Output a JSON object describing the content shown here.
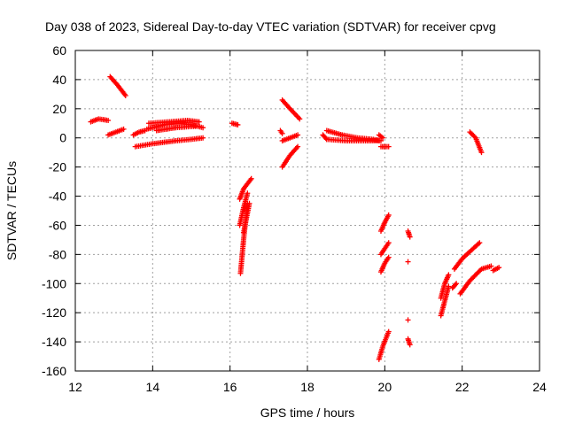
{
  "chart_data": {
    "type": "scatter",
    "title": "Day 038 of 2023, Sidereal Day-to-day VTEC variation (SDTVAR) for receiver cpvg",
    "xlabel": "GPS time / hours",
    "ylabel": "SDTVAR / TECUs",
    "xlim": [
      12,
      24
    ],
    "ylim": [
      -160,
      60
    ],
    "xticks": [
      12,
      14,
      16,
      18,
      20,
      22,
      24
    ],
    "yticks": [
      60,
      40,
      20,
      0,
      -20,
      -40,
      -60,
      -80,
      -100,
      -120,
      -140,
      -160
    ],
    "grid": true,
    "marker": "plus",
    "color": "#ff0000",
    "arcs": [
      {
        "x": [
          12.4,
          12.6,
          12.85
        ],
        "y": [
          11,
          13,
          12
        ]
      },
      {
        "x": [
          12.9,
          13.1,
          13.3
        ],
        "y": [
          42,
          36,
          29
        ]
      },
      {
        "x": [
          12.85,
          13.05,
          13.25
        ],
        "y": [
          2,
          4,
          6
        ]
      },
      {
        "x": [
          13.5,
          13.65,
          13.8
        ],
        "y": [
          2,
          4,
          5
        ]
      },
      {
        "x": [
          13.55,
          14.0,
          14.6,
          15.0,
          15.3
        ],
        "y": [
          -6,
          -4,
          -2,
          -1,
          0
        ]
      },
      {
        "x": [
          13.85,
          14.3,
          14.7,
          15.0,
          15.3
        ],
        "y": [
          6,
          9,
          10,
          9,
          7
        ]
      },
      {
        "x": [
          13.9,
          14.4,
          14.9,
          15.2
        ],
        "y": [
          10,
          11,
          12,
          11
        ]
      },
      {
        "x": [
          14.1,
          14.6,
          15.1
        ],
        "y": [
          5,
          7,
          8
        ]
      },
      {
        "x": [
          16.05,
          16.2
        ],
        "y": [
          10,
          9
        ]
      },
      {
        "x": [
          16.25,
          16.35,
          16.55
        ],
        "y": [
          -42,
          -35,
          -28
        ]
      },
      {
        "x": [
          16.25,
          16.35,
          16.45
        ],
        "y": [
          -60,
          -48,
          -38
        ]
      },
      {
        "x": [
          16.27,
          16.35,
          16.45
        ],
        "y": [
          -93,
          -70,
          -45
        ]
      },
      {
        "x": [
          16.35,
          16.5
        ],
        "y": [
          -65,
          -45
        ]
      },
      {
        "x": [
          17.3,
          17.35
        ],
        "y": [
          5,
          3
        ]
      },
      {
        "x": [
          17.35,
          17.55,
          17.8
        ],
        "y": [
          26,
          20,
          13
        ]
      },
      {
        "x": [
          17.35,
          17.55,
          17.75
        ],
        "y": [
          -2,
          0,
          2
        ]
      },
      {
        "x": [
          17.35,
          17.55,
          17.75
        ],
        "y": [
          -20,
          -12,
          -6
        ]
      },
      {
        "x": [
          18.4,
          18.5
        ],
        "y": [
          2,
          -1
        ]
      },
      {
        "x": [
          18.5,
          18.9,
          19.3,
          19.7,
          19.9
        ],
        "y": [
          5,
          2,
          0,
          -1,
          -2
        ]
      },
      {
        "x": [
          18.5,
          19.0,
          19.5,
          19.85
        ],
        "y": [
          -1,
          -2,
          -2,
          -2
        ]
      },
      {
        "x": [
          19.85,
          19.95
        ],
        "y": [
          2,
          0
        ]
      },
      {
        "x": [
          19.9,
          20.1
        ],
        "y": [
          -6,
          -6
        ]
      },
      {
        "x": [
          19.9,
          20.0,
          20.1
        ],
        "y": [
          -64,
          -58,
          -53
        ]
      },
      {
        "x": [
          19.9,
          20.0,
          20.1
        ],
        "y": [
          -80,
          -76,
          -72
        ]
      },
      {
        "x": [
          19.9,
          20.0,
          20.1
        ],
        "y": [
          -92,
          -86,
          -82
        ]
      },
      {
        "x": [
          19.85,
          19.95,
          20.1
        ],
        "y": [
          -152,
          -143,
          -133
        ]
      },
      {
        "x": [
          20.6,
          20.65
        ],
        "y": [
          -64,
          -68
        ]
      },
      {
        "x": [
          20.6
        ],
        "y": [
          -85
        ]
      },
      {
        "x": [
          20.6
        ],
        "y": [
          -125
        ]
      },
      {
        "x": [
          20.6,
          20.65
        ],
        "y": [
          -138,
          -142
        ]
      },
      {
        "x": [
          21.45,
          21.55,
          21.65
        ],
        "y": [
          -122,
          -112,
          -102
        ]
      },
      {
        "x": [
          21.45,
          21.55,
          21.65
        ],
        "y": [
          -110,
          -100,
          -94
        ]
      },
      {
        "x": [
          21.75,
          21.85
        ],
        "y": [
          -103,
          -100
        ]
      },
      {
        "x": [
          21.8,
          22.0,
          22.2,
          22.45
        ],
        "y": [
          -90,
          -83,
          -78,
          -72
        ]
      },
      {
        "x": [
          21.95,
          22.2,
          22.5,
          22.75
        ],
        "y": [
          -107,
          -98,
          -90,
          -88
        ]
      },
      {
        "x": [
          22.2,
          22.35,
          22.5
        ],
        "y": [
          4,
          0,
          -10
        ]
      },
      {
        "x": [
          22.8,
          22.95
        ],
        "y": [
          -91,
          -89
        ]
      }
    ]
  }
}
